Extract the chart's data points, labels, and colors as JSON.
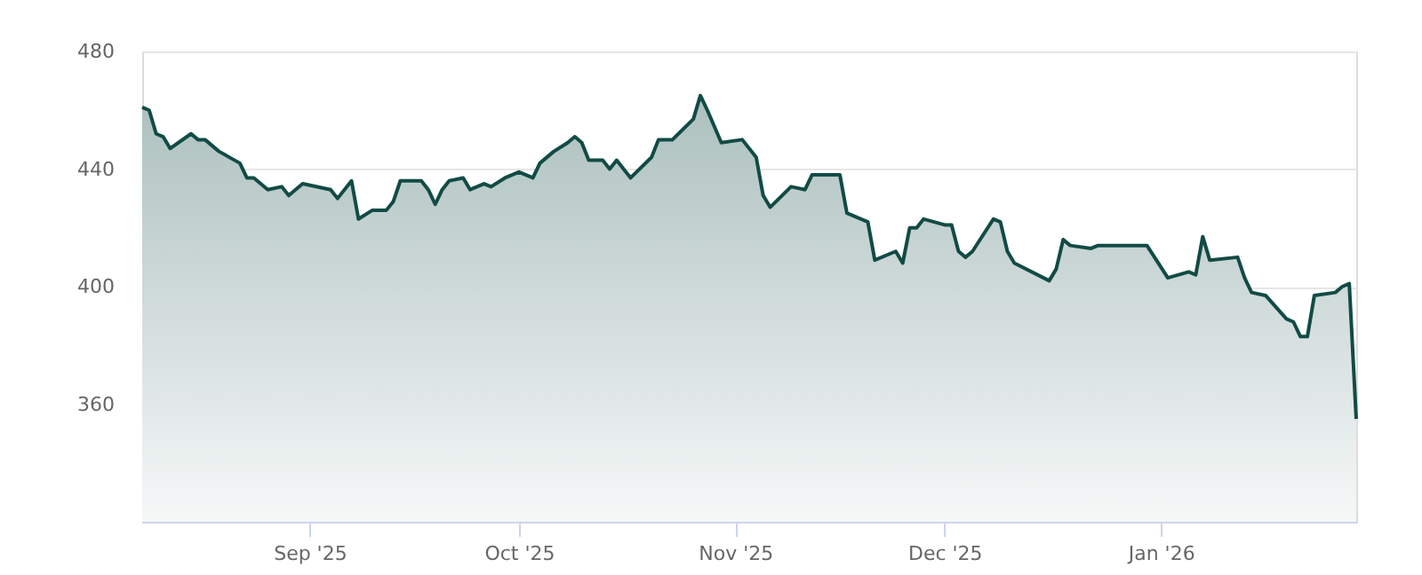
{
  "chart_data": {
    "type": "area",
    "x": [
      "2025-08-08",
      "2025-08-09",
      "2025-08-10",
      "2025-08-11",
      "2025-08-12",
      "2025-08-15",
      "2025-08-16",
      "2025-08-17",
      "2025-08-19",
      "2025-08-22",
      "2025-08-23",
      "2025-08-24",
      "2025-08-26",
      "2025-08-28",
      "2025-08-29",
      "2025-08-31",
      "2025-09-04",
      "2025-09-05",
      "2025-09-07",
      "2025-09-08",
      "2025-09-10",
      "2025-09-12",
      "2025-09-13",
      "2025-09-14",
      "2025-09-17",
      "2025-09-18",
      "2025-09-19",
      "2025-09-20",
      "2025-09-21",
      "2025-09-23",
      "2025-09-24",
      "2025-09-26",
      "2025-09-27",
      "2025-09-29",
      "2025-10-01",
      "2025-10-03",
      "2025-10-04",
      "2025-10-06",
      "2025-10-08",
      "2025-10-09",
      "2025-10-10",
      "2025-10-11",
      "2025-10-13",
      "2025-10-14",
      "2025-10-15",
      "2025-10-17",
      "2025-10-20",
      "2025-10-21",
      "2025-10-23",
      "2025-10-26",
      "2025-10-27",
      "2025-10-28",
      "2025-10-30",
      "2025-11-02",
      "2025-11-04",
      "2025-11-05",
      "2025-11-06",
      "2025-11-09",
      "2025-11-11",
      "2025-11-12",
      "2025-11-16",
      "2025-11-17",
      "2025-11-20",
      "2025-11-21",
      "2025-11-24",
      "2025-11-25",
      "2025-11-26",
      "2025-11-27",
      "2025-11-28",
      "2025-12-01",
      "2025-12-02",
      "2025-12-03",
      "2025-12-04",
      "2025-12-05",
      "2025-12-08",
      "2025-12-09",
      "2025-12-10",
      "2025-12-11",
      "2025-12-16",
      "2025-12-17",
      "2025-12-18",
      "2025-12-19",
      "2025-12-22",
      "2025-12-23",
      "2025-12-30",
      "2026-01-02",
      "2026-01-05",
      "2026-01-06",
      "2026-01-07",
      "2026-01-08",
      "2026-01-12",
      "2026-01-13",
      "2026-01-14",
      "2026-01-16",
      "2026-01-19",
      "2026-01-20",
      "2026-01-21",
      "2026-01-22",
      "2026-01-23",
      "2026-01-26",
      "2026-01-27",
      "2026-01-28",
      "2026-01-29"
    ],
    "series": [
      {
        "color": "#124b45",
        "values": [
          461,
          460,
          452,
          451,
          447,
          452,
          450,
          450,
          446,
          442,
          437,
          437,
          433,
          434,
          431,
          435,
          433,
          430,
          436,
          423,
          426,
          426,
          429,
          436,
          436,
          433,
          428,
          433,
          436,
          437,
          433,
          435,
          434,
          437,
          439,
          437,
          442,
          446,
          449,
          451,
          449,
          443,
          443,
          440,
          443,
          437,
          444,
          450,
          450,
          457,
          465,
          460,
          449,
          450,
          444,
          431,
          427,
          434,
          433,
          438,
          438,
          425,
          422,
          409,
          412,
          408,
          420,
          420,
          423,
          421,
          421,
          412,
          410,
          412,
          423,
          422,
          412,
          408,
          402,
          406,
          416,
          414,
          413,
          414,
          414,
          403,
          405,
          404,
          417,
          409,
          410,
          403,
          398,
          397,
          389,
          388,
          383,
          383,
          397,
          398,
          400,
          401,
          355
        ]
      }
    ],
    "xlim": [
      "2025-08-08",
      "2026-01-29"
    ],
    "xticks": [
      {
        "value": "2025-09-01",
        "label": "Sep '25"
      },
      {
        "value": "2025-10-01",
        "label": "Oct '25"
      },
      {
        "value": "2025-11-01",
        "label": "Nov '25"
      },
      {
        "value": "2025-12-01",
        "label": "Dec '25"
      },
      {
        "value": "2026-01-01",
        "label": "Jan '26"
      }
    ],
    "ylim": [
      320,
      480
    ],
    "yticks": [
      360,
      400,
      440,
      480
    ],
    "grid": "y",
    "line_style": "solid",
    "marker": "none"
  }
}
